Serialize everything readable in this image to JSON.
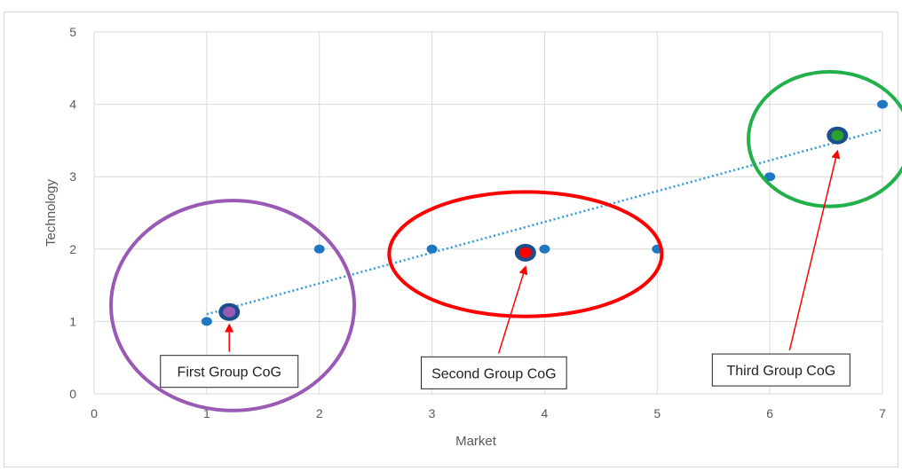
{
  "chart_data": {
    "type": "scatter",
    "xlabel": "Market",
    "ylabel": "Technology",
    "xlim": [
      0,
      7
    ],
    "ylim": [
      0,
      5
    ],
    "x_ticks": [
      "0",
      "1",
      "2",
      "3",
      "4",
      "5",
      "6",
      "7"
    ],
    "y_ticks": [
      "0",
      "1",
      "2",
      "3",
      "4",
      "5"
    ],
    "grid": true,
    "points": [
      {
        "x": 1,
        "y": 1
      },
      {
        "x": 2,
        "y": 2
      },
      {
        "x": 3,
        "y": 2
      },
      {
        "x": 4,
        "y": 2
      },
      {
        "x": 5,
        "y": 2
      },
      {
        "x": 6,
        "y": 3
      },
      {
        "x": 7,
        "y": 4
      }
    ],
    "trendline": {
      "style": "dotted",
      "x_range": [
        1,
        7
      ],
      "y_start": 1.1,
      "y_end": 3.65
    },
    "centers_of_gravity": [
      {
        "x": 1.2,
        "y": 1.13,
        "color": "#9b59b6"
      },
      {
        "x": 3.83,
        "y": 1.95,
        "color": "#ff0000"
      },
      {
        "x": 6.6,
        "y": 3.57,
        "color": "#2ca02c"
      }
    ],
    "group_ellipses": [
      {
        "cx": 1.23,
        "cy": 1.22,
        "rx": 1.08,
        "ry": 1.45,
        "color": "#9b59b6"
      },
      {
        "cx": 3.83,
        "cy": 1.93,
        "rx": 1.21,
        "ry": 0.86,
        "color": "#ff0000"
      },
      {
        "cx": 6.53,
        "cy": 3.52,
        "rx": 0.72,
        "ry": 0.93,
        "color": "#22b04b"
      }
    ],
    "annotations": [
      {
        "text": "First Group CoG",
        "arrow_to": [
          1.2,
          0.95
        ],
        "box_center": [
          1.2,
          0.31
        ]
      },
      {
        "text": "Second Group CoG",
        "arrow_to": [
          3.83,
          1.75
        ],
        "box_center": [
          3.55,
          0.29
        ]
      },
      {
        "text": "Third Group CoG",
        "arrow_to": [
          6.6,
          3.35
        ],
        "box_center": [
          6.1,
          0.33
        ]
      }
    ],
    "colors": {
      "point": "#1f77c4",
      "trendline": "#2e9bd6",
      "grid": "#d9d9d9",
      "arrow": "#ff0000",
      "cog_ring": "#1a4f8a"
    }
  }
}
